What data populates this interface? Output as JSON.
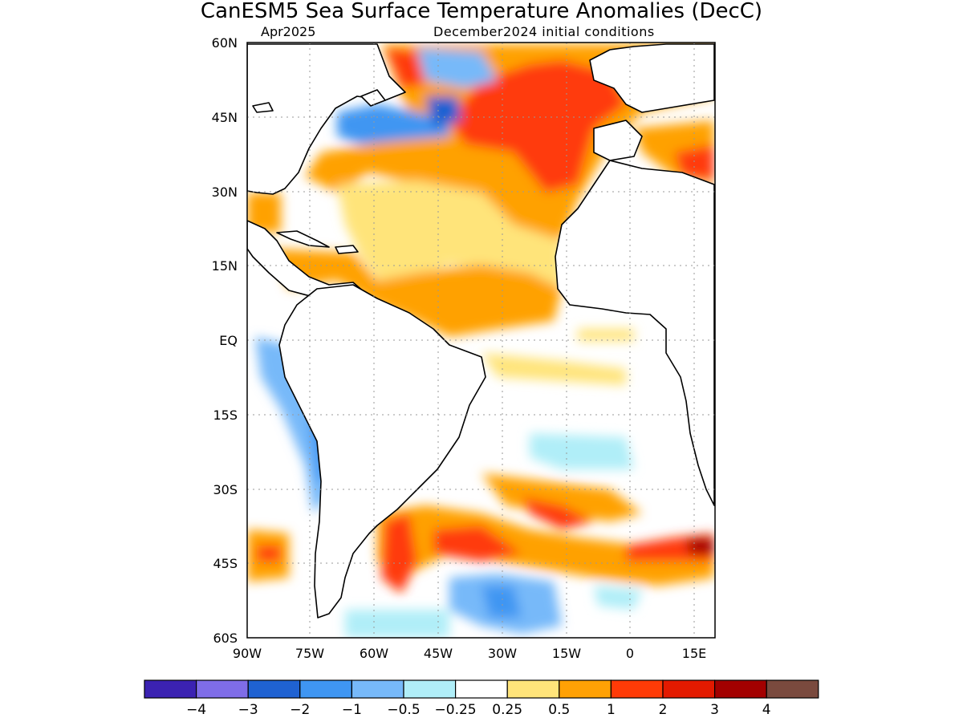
{
  "chart_data": {
    "type": "heatmap",
    "title": "CanESM5 Sea Surface Temperature Anomalies (DecC)",
    "subtitle_left": "Apr2025",
    "subtitle_right": "December2024 initial conditions",
    "units": "DecC",
    "xlim": [
      -90,
      20
    ],
    "ylim": [
      -60,
      60
    ],
    "grid": true,
    "x_ticks": [
      {
        "value": -90,
        "label": "90W"
      },
      {
        "value": -75,
        "label": "75W"
      },
      {
        "value": -60,
        "label": "60W"
      },
      {
        "value": -45,
        "label": "45W"
      },
      {
        "value": -30,
        "label": "30W"
      },
      {
        "value": -15,
        "label": "15W"
      },
      {
        "value": 0,
        "label": "0"
      },
      {
        "value": 15,
        "label": "15E"
      }
    ],
    "y_ticks": [
      {
        "value": 60,
        "label": "60N"
      },
      {
        "value": 45,
        "label": "45N"
      },
      {
        "value": 30,
        "label": "30N"
      },
      {
        "value": 15,
        "label": "15N"
      },
      {
        "value": 0,
        "label": "EQ"
      },
      {
        "value": -15,
        "label": "15S"
      },
      {
        "value": -30,
        "label": "30S"
      },
      {
        "value": -45,
        "label": "45S"
      },
      {
        "value": -60,
        "label": "60S"
      }
    ],
    "colorbar": {
      "colors": [
        "#3b22b2",
        "#7f6de8",
        "#1f62d2",
        "#3f96f2",
        "#77b9f9",
        "#b0eef8",
        "#ffffff",
        "#ffe47a",
        "#ffa105",
        "#ff3b07",
        "#e31a00",
        "#a30000",
        "#7a4a3e"
      ],
      "labels": [
        "−4",
        "−3",
        "−2",
        "−1",
        "−0.5",
        "−0.25",
        "0.25",
        "0.5",
        "1",
        "2",
        "3",
        "4"
      ]
    },
    "anomaly_regions": [
      {
        "lon": -22,
        "lat": 46,
        "value": 2
      },
      {
        "lon": -34,
        "lat": 38,
        "value": 1
      },
      {
        "lon": -40,
        "lat": 20,
        "value": 0.5
      },
      {
        "lon": -25,
        "lat": 10,
        "value": 1
      },
      {
        "lon": -60,
        "lat": 44,
        "value": -1
      },
      {
        "lon": -47,
        "lat": 56,
        "value": -0.5
      },
      {
        "lon": -80,
        "lat": -20,
        "value": -1
      },
      {
        "lon": -52,
        "lat": -42,
        "value": 2
      },
      {
        "lon": -35,
        "lat": -42,
        "value": 2
      },
      {
        "lon": -10,
        "lat": -42,
        "value": 1
      },
      {
        "lon": 15,
        "lat": -44,
        "value": 3
      },
      {
        "lon": -35,
        "lat": -55,
        "value": -1
      },
      {
        "lon": -10,
        "lat": -22,
        "value": -0.25
      },
      {
        "lon": -86,
        "lat": -43,
        "value": 2
      },
      {
        "lon": -20,
        "lat": -6,
        "value": 0.5
      }
    ]
  }
}
